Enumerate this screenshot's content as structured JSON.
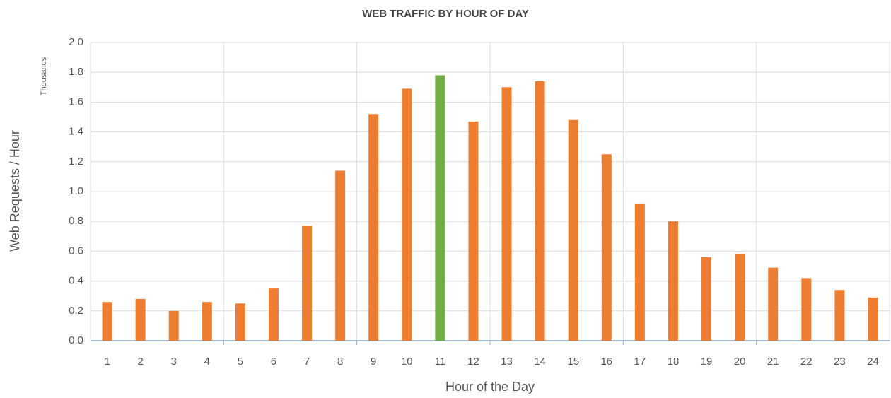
{
  "chart_data": {
    "type": "bar",
    "title": "WEB TRAFFIC BY HOUR OF DAY",
    "x_label": "Hour of the Day",
    "y_label": "Web Requests / Hour",
    "y_unit_label": "Thousands",
    "categories": [
      "1",
      "2",
      "3",
      "4",
      "5",
      "6",
      "7",
      "8",
      "9",
      "10",
      "11",
      "12",
      "13",
      "14",
      "15",
      "16",
      "17",
      "18",
      "19",
      "20",
      "21",
      "22",
      "23",
      "24"
    ],
    "values": [
      0.26,
      0.28,
      0.2,
      0.26,
      0.25,
      0.35,
      0.77,
      1.14,
      1.52,
      1.69,
      1.78,
      1.47,
      1.7,
      1.74,
      1.48,
      1.25,
      0.92,
      0.8,
      0.56,
      0.58,
      0.49,
      0.42,
      0.34,
      0.29
    ],
    "colors": [
      "#ed7d31",
      "#ed7d31",
      "#ed7d31",
      "#ed7d31",
      "#ed7d31",
      "#ed7d31",
      "#ed7d31",
      "#ed7d31",
      "#ed7d31",
      "#ed7d31",
      "#70ad47",
      "#ed7d31",
      "#ed7d31",
      "#ed7d31",
      "#ed7d31",
      "#ed7d31",
      "#ed7d31",
      "#ed7d31",
      "#ed7d31",
      "#ed7d31",
      "#ed7d31",
      "#ed7d31",
      "#ed7d31",
      "#ed7d31"
    ],
    "ylim": [
      0,
      2
    ],
    "yticks": [
      {
        "value": 0,
        "label": "0.0"
      },
      0.2,
      0.4,
      0.6,
      0.8,
      {
        "value": 1,
        "label": "1.0"
      },
      1.2,
      1.4,
      1.6,
      1.8,
      {
        "value": 2,
        "label": "2.0"
      }
    ],
    "grid": true
  }
}
